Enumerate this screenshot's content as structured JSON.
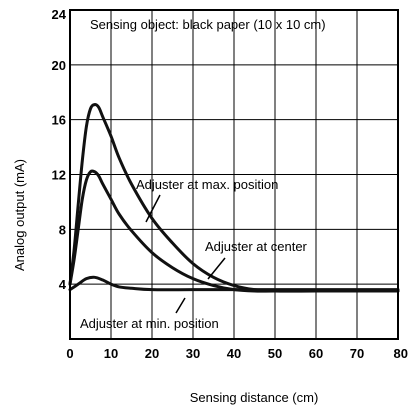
{
  "chart_data": {
    "type": "line",
    "title": "",
    "xlabel": "Sensing distance (cm)",
    "ylabel": "Analog output (mA)",
    "xlim": [
      0,
      80
    ],
    "ylim": [
      0,
      24
    ],
    "xticks": [
      "0",
      "10",
      "20",
      "30",
      "40",
      "50",
      "60",
      "70",
      "80"
    ],
    "yticks": [
      "4",
      "8",
      "12",
      "16",
      "20",
      "24"
    ],
    "grid": true,
    "annotation_top": "Sensing object: black paper (10 x 10 cm)",
    "annotations": [
      {
        "text": "Adjuster at max. position",
        "series": 0
      },
      {
        "text": "Adjuster at center",
        "series": 1
      },
      {
        "text": "Adjuster at min. position",
        "series": 2
      }
    ],
    "series": [
      {
        "name": "Adjuster at max. position",
        "x": [
          0,
          1,
          2,
          3,
          4,
          5,
          6,
          7,
          8,
          10,
          12,
          15,
          20,
          25,
          30,
          35,
          40,
          45,
          50,
          60,
          70,
          80
        ],
        "y": [
          4.0,
          6.5,
          9.8,
          13.0,
          15.5,
          16.8,
          17.1,
          16.9,
          16.2,
          14.8,
          13.2,
          11.3,
          8.8,
          7.0,
          5.5,
          4.5,
          3.9,
          3.6,
          3.5,
          3.5,
          3.5,
          3.5
        ]
      },
      {
        "name": "Adjuster at center",
        "x": [
          0,
          1,
          2,
          3,
          4,
          5,
          6,
          7,
          8,
          10,
          12,
          15,
          20,
          25,
          30,
          35,
          40,
          45,
          50,
          60,
          70,
          80
        ],
        "y": [
          4.0,
          5.8,
          8.0,
          10.2,
          11.6,
          12.2,
          12.2,
          11.9,
          11.3,
          10.2,
          9.1,
          7.9,
          6.3,
          5.2,
          4.4,
          3.9,
          3.6,
          3.5,
          3.5,
          3.5,
          3.5,
          3.5
        ]
      },
      {
        "name": "Adjuster at min. position",
        "x": [
          0,
          2,
          4,
          6,
          8,
          10,
          12,
          15,
          20,
          30,
          40,
          50,
          60,
          70,
          80
        ],
        "y": [
          3.6,
          4.0,
          4.4,
          4.5,
          4.3,
          4.0,
          3.8,
          3.7,
          3.6,
          3.6,
          3.6,
          3.6,
          3.6,
          3.6,
          3.6
        ]
      }
    ]
  }
}
